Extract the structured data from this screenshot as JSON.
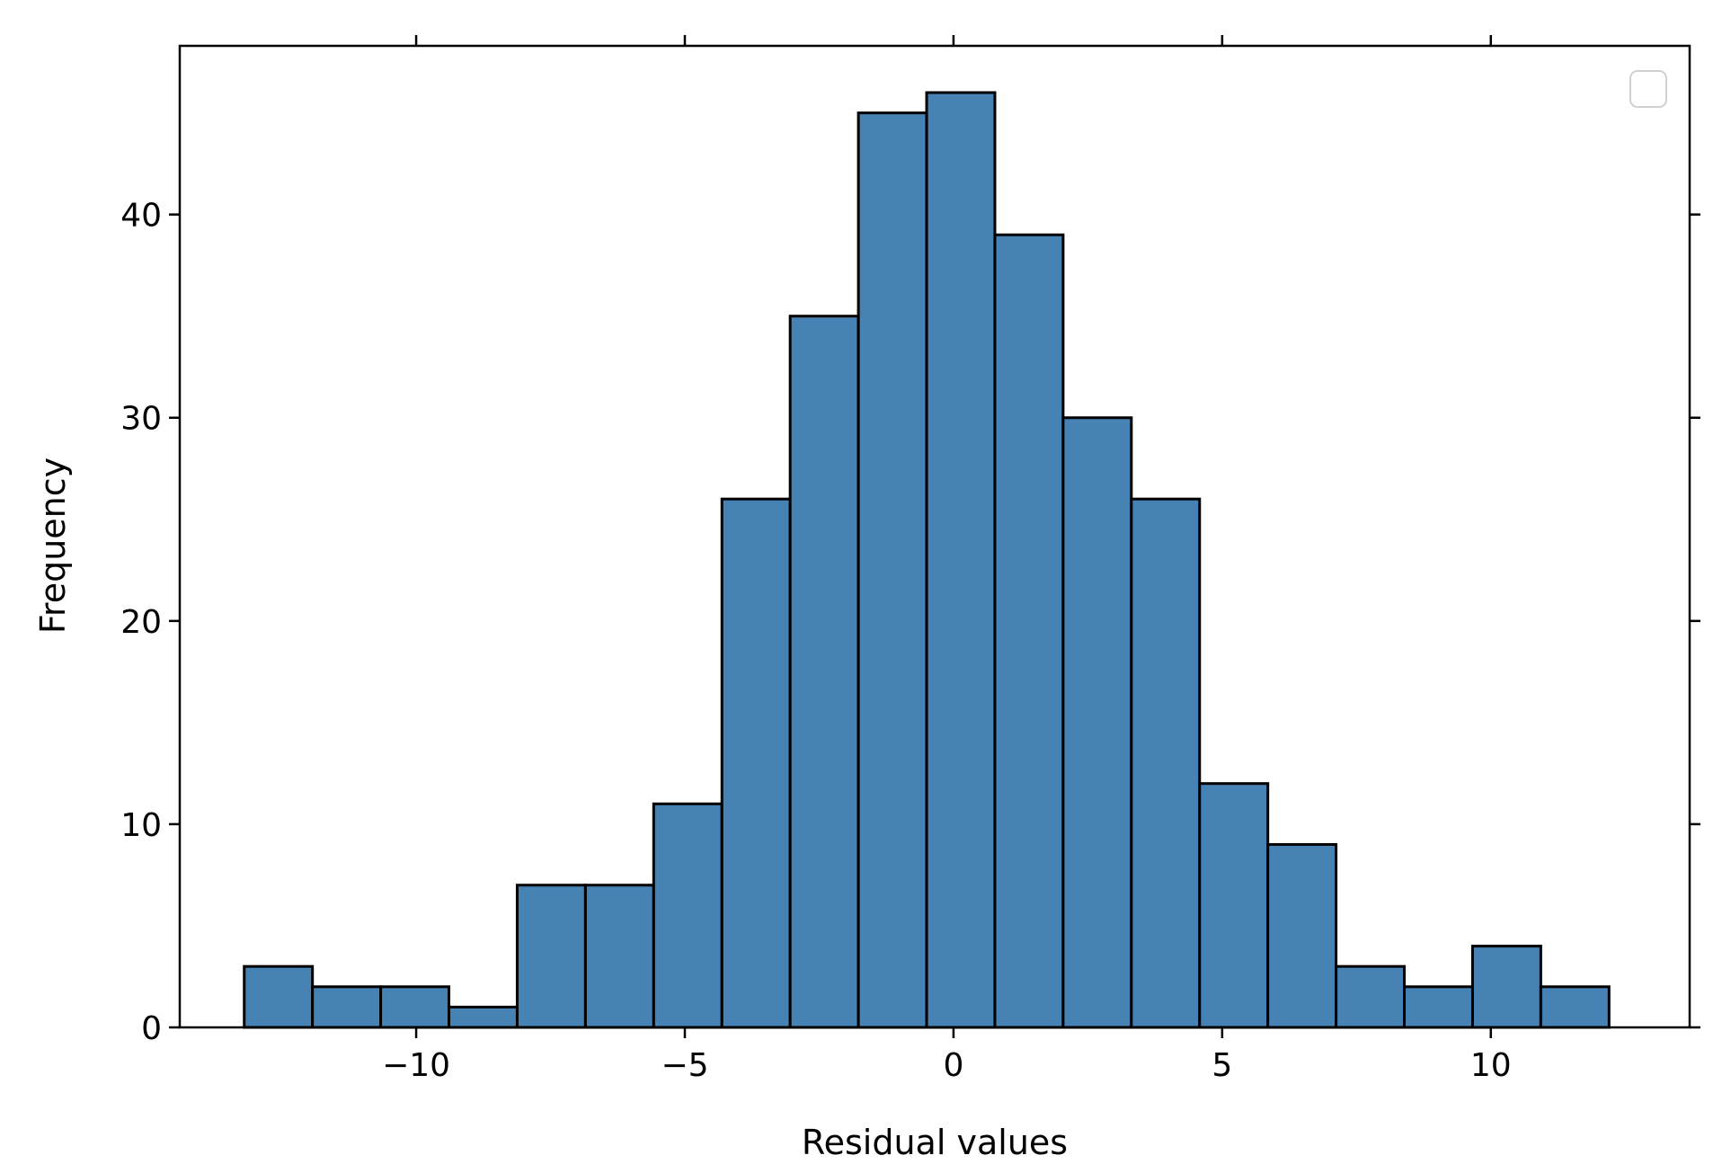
{
  "chart_data": {
    "type": "bar",
    "title": "",
    "xlabel": "Residual values",
    "ylabel": "Frequency",
    "xlim": [
      -14.4,
      13.7
    ],
    "ylim": [
      0,
      48.3
    ],
    "x_ticks": [
      -10,
      -5,
      0,
      5,
      10
    ],
    "x_tick_labels": [
      "−10",
      "−5",
      "0",
      "5",
      "10"
    ],
    "y_ticks": [
      0,
      10,
      20,
      30,
      40
    ],
    "y_tick_labels": [
      "0",
      "10",
      "20",
      "30",
      "40"
    ],
    "bin_start": -13.2,
    "bin_width": 1.27,
    "values": [
      3,
      2,
      2,
      1,
      7,
      7,
      11,
      26,
      35,
      45,
      46,
      39,
      30,
      26,
      12,
      9,
      3,
      2,
      4,
      2
    ],
    "bar_color": "#4682b4",
    "edge_color": "#000000",
    "grid": false,
    "legend": {
      "placement": "top-right",
      "entries": []
    }
  }
}
